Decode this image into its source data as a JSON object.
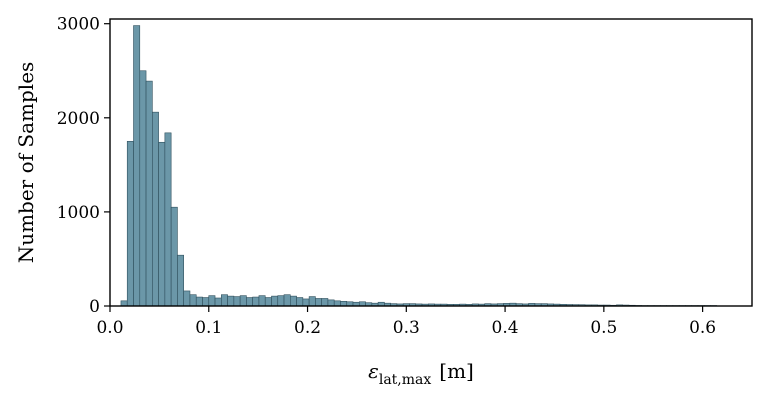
{
  "chart_data": {
    "type": "bar",
    "title": "",
    "xlabel_main": "ε",
    "xlabel_sub": "lat,max",
    "xlabel_unit": "[m]",
    "ylabel": "Number of Samples",
    "xlim": [
      0.0,
      0.65
    ],
    "ylim": [
      0,
      3050
    ],
    "x_ticks": [
      0.0,
      0.1,
      0.2,
      0.3,
      0.4,
      0.5,
      0.6
    ],
    "x_tick_labels": [
      "0.0",
      "0.1",
      "0.2",
      "0.3",
      "0.4",
      "0.5",
      "0.6"
    ],
    "y_ticks": [
      0,
      1000,
      2000,
      3000
    ],
    "y_tick_labels": [
      "0",
      "1000",
      "2000",
      "3000"
    ],
    "grid": false,
    "bin_width": 0.00635,
    "bin_starts": [
      0.0111,
      0.01745,
      0.0238,
      0.03015,
      0.0365,
      0.04285,
      0.0492,
      0.05555,
      0.0619,
      0.06825,
      0.0746,
      0.08095,
      0.0873,
      0.09365,
      0.1,
      0.10635,
      0.1127,
      0.11905,
      0.1254,
      0.13175,
      0.1381,
      0.14445,
      0.1508,
      0.15715,
      0.1635,
      0.16985,
      0.1762,
      0.18255,
      0.1889,
      0.19525,
      0.2016,
      0.20795,
      0.2143,
      0.22065,
      0.227,
      0.23335,
      0.2397,
      0.24605,
      0.2524,
      0.25875,
      0.2651,
      0.27145,
      0.2778,
      0.28415,
      0.2905,
      0.29685,
      0.3032,
      0.30955,
      0.3159,
      0.32225,
      0.3286,
      0.33495,
      0.3413,
      0.34765,
      0.354,
      0.36035,
      0.3667,
      0.37305,
      0.3794,
      0.38575,
      0.3921,
      0.39845,
      0.4048,
      0.41115,
      0.4175,
      0.42385,
      0.4302,
      0.43655,
      0.4429,
      0.44925,
      0.4556,
      0.46195,
      0.4683,
      0.47465,
      0.481,
      0.48735,
      0.4937,
      0.50005,
      0.5064,
      0.51275,
      0.5191,
      0.52545,
      0.5318,
      0.53815,
      0.5445,
      0.55085,
      0.5572,
      0.56355,
      0.5699,
      0.57625,
      0.5826,
      0.58895,
      0.5953,
      0.60165,
      0.608
    ],
    "values": [
      55,
      1750,
      2980,
      2500,
      2390,
      2060,
      1740,
      1840,
      1050,
      540,
      160,
      120,
      95,
      90,
      110,
      85,
      120,
      105,
      100,
      110,
      90,
      95,
      110,
      90,
      105,
      110,
      120,
      105,
      90,
      75,
      100,
      80,
      80,
      65,
      55,
      50,
      45,
      40,
      45,
      35,
      30,
      40,
      30,
      25,
      22,
      25,
      25,
      22,
      20,
      22,
      20,
      20,
      18,
      18,
      20,
      18,
      22,
      20,
      25,
      22,
      25,
      28,
      30,
      25,
      22,
      28,
      25,
      25,
      22,
      20,
      18,
      16,
      15,
      14,
      12,
      12,
      10,
      10,
      8,
      12,
      10,
      8,
      6,
      5,
      5,
      5,
      5,
      5,
      5,
      5,
      5,
      5,
      5,
      5,
      5
    ]
  }
}
